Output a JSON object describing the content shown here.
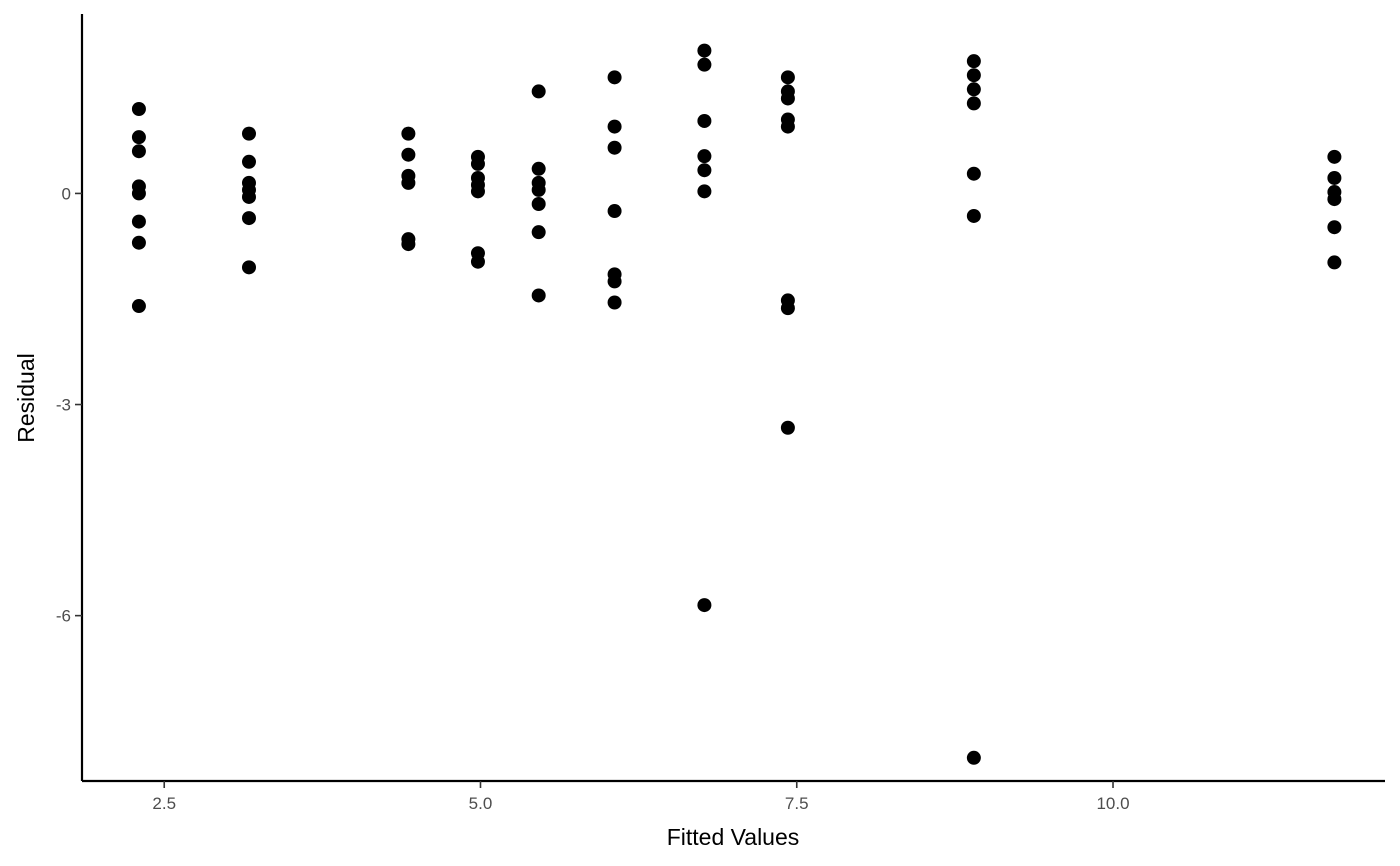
{
  "chart_data": {
    "type": "scatter",
    "title": "",
    "xlabel": "Fitted Values",
    "ylabel": "Residual",
    "xlim": [
      1.85,
      12.15
    ],
    "ylim": [
      -8.35,
      2.55
    ],
    "x_ticks": [
      2.5,
      5.0,
      7.5,
      10.0
    ],
    "x_tick_labels": [
      "2.5",
      "5.0",
      "7.5",
      "10.0"
    ],
    "y_ticks": [
      0,
      -3,
      -6
    ],
    "y_tick_labels": [
      "0",
      "-3",
      "-6"
    ],
    "grid": false,
    "legend": "none",
    "point_color": "#000000",
    "points": [
      {
        "x": 2.3,
        "y": 1.2
      },
      {
        "x": 2.3,
        "y": 0.8
      },
      {
        "x": 2.3,
        "y": 0.6
      },
      {
        "x": 2.3,
        "y": 0.1
      },
      {
        "x": 2.3,
        "y": 0.0
      },
      {
        "x": 2.3,
        "y": -0.4
      },
      {
        "x": 2.3,
        "y": -0.7
      },
      {
        "x": 2.3,
        "y": -1.6
      },
      {
        "x": 3.17,
        "y": 0.85
      },
      {
        "x": 3.17,
        "y": 0.45
      },
      {
        "x": 3.17,
        "y": 0.15
      },
      {
        "x": 3.17,
        "y": 0.05
      },
      {
        "x": 3.17,
        "y": -0.05
      },
      {
        "x": 3.17,
        "y": -0.35
      },
      {
        "x": 3.17,
        "y": -1.05
      },
      {
        "x": 4.43,
        "y": 0.85
      },
      {
        "x": 4.43,
        "y": 0.55
      },
      {
        "x": 4.43,
        "y": 0.25
      },
      {
        "x": 4.43,
        "y": 0.15
      },
      {
        "x": 4.43,
        "y": -0.65
      },
      {
        "x": 4.43,
        "y": -0.72
      },
      {
        "x": 4.98,
        "y": 0.52
      },
      {
        "x": 4.98,
        "y": 0.42
      },
      {
        "x": 4.98,
        "y": 0.22
      },
      {
        "x": 4.98,
        "y": 0.12
      },
      {
        "x": 4.98,
        "y": 0.03
      },
      {
        "x": 4.98,
        "y": -0.85
      },
      {
        "x": 4.98,
        "y": -0.97
      },
      {
        "x": 5.46,
        "y": 1.45
      },
      {
        "x": 5.46,
        "y": 0.35
      },
      {
        "x": 5.46,
        "y": 0.15
      },
      {
        "x": 5.46,
        "y": 0.05
      },
      {
        "x": 5.46,
        "y": -0.15
      },
      {
        "x": 5.46,
        "y": -0.55
      },
      {
        "x": 5.46,
        "y": -1.45
      },
      {
        "x": 6.06,
        "y": 1.65
      },
      {
        "x": 6.06,
        "y": 0.95
      },
      {
        "x": 6.06,
        "y": 0.65
      },
      {
        "x": 6.06,
        "y": -0.25
      },
      {
        "x": 6.06,
        "y": -1.15
      },
      {
        "x": 6.06,
        "y": -1.25
      },
      {
        "x": 6.06,
        "y": -1.55
      },
      {
        "x": 6.77,
        "y": 2.03
      },
      {
        "x": 6.77,
        "y": 1.83
      },
      {
        "x": 6.77,
        "y": 1.03
      },
      {
        "x": 6.77,
        "y": 0.53
      },
      {
        "x": 6.77,
        "y": 0.33
      },
      {
        "x": 6.77,
        "y": 0.03
      },
      {
        "x": 6.77,
        "y": -5.85
      },
      {
        "x": 7.43,
        "y": 1.65
      },
      {
        "x": 7.43,
        "y": 1.45
      },
      {
        "x": 7.43,
        "y": 1.35
      },
      {
        "x": 7.43,
        "y": 1.05
      },
      {
        "x": 7.43,
        "y": 0.95
      },
      {
        "x": 7.43,
        "y": -1.52
      },
      {
        "x": 7.43,
        "y": -1.63
      },
      {
        "x": 7.43,
        "y": -3.33
      },
      {
        "x": 8.9,
        "y": 1.88
      },
      {
        "x": 8.9,
        "y": 1.68
      },
      {
        "x": 8.9,
        "y": 1.48
      },
      {
        "x": 8.9,
        "y": 1.28
      },
      {
        "x": 8.9,
        "y": 0.28
      },
      {
        "x": 8.9,
        "y": -0.32
      },
      {
        "x": 8.9,
        "y": -8.02
      },
      {
        "x": 11.75,
        "y": 0.52
      },
      {
        "x": 11.75,
        "y": 0.22
      },
      {
        "x": 11.75,
        "y": 0.02
      },
      {
        "x": 11.75,
        "y": -0.08
      },
      {
        "x": 11.75,
        "y": -0.48
      },
      {
        "x": 11.75,
        "y": -0.98
      }
    ]
  }
}
